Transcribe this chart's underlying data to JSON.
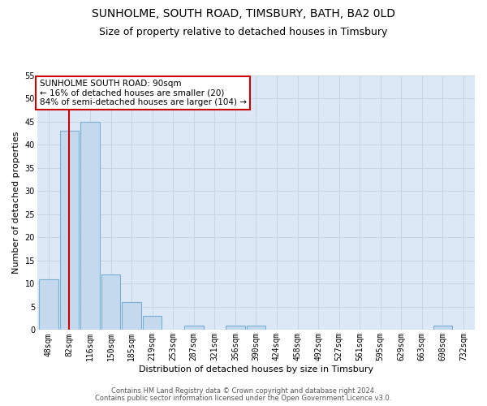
{
  "title": "SUNHOLME, SOUTH ROAD, TIMSBURY, BATH, BA2 0LD",
  "subtitle": "Size of property relative to detached houses in Timsbury",
  "xlabel": "Distribution of detached houses by size in Timsbury",
  "ylabel": "Number of detached properties",
  "categories": [
    "48sqm",
    "82sqm",
    "116sqm",
    "150sqm",
    "185sqm",
    "219sqm",
    "253sqm",
    "287sqm",
    "321sqm",
    "356sqm",
    "390sqm",
    "424sqm",
    "458sqm",
    "492sqm",
    "527sqm",
    "561sqm",
    "595sqm",
    "629sqm",
    "663sqm",
    "698sqm",
    "732sqm"
  ],
  "values": [
    11,
    43,
    45,
    12,
    6,
    3,
    0,
    1,
    0,
    1,
    1,
    0,
    0,
    0,
    0,
    0,
    0,
    0,
    0,
    1,
    0
  ],
  "bar_color": "#c5d9ee",
  "bar_edge_color": "#7aafd4",
  "highlight_bar_index": 1,
  "highlight_line_color": "#cc0000",
  "annotation_text": "SUNHOLME SOUTH ROAD: 90sqm\n← 16% of detached houses are smaller (20)\n84% of semi-detached houses are larger (104) →",
  "annotation_box_facecolor": "#ffffff",
  "annotation_box_edgecolor": "#cc0000",
  "ylim": [
    0,
    55
  ],
  "yticks": [
    0,
    5,
    10,
    15,
    20,
    25,
    30,
    35,
    40,
    45,
    50,
    55
  ],
  "grid_color": "#c8d4e4",
  "plot_bg_color": "#dce8f5",
  "fig_bg_color": "#ffffff",
  "footer1": "Contains HM Land Registry data © Crown copyright and database right 2024.",
  "footer2": "Contains public sector information licensed under the Open Government Licence v3.0.",
  "title_fontsize": 10,
  "subtitle_fontsize": 9,
  "ylabel_fontsize": 8,
  "xlabel_fontsize": 8,
  "tick_fontsize": 7,
  "annotation_fontsize": 7.5,
  "footer_fontsize": 6
}
